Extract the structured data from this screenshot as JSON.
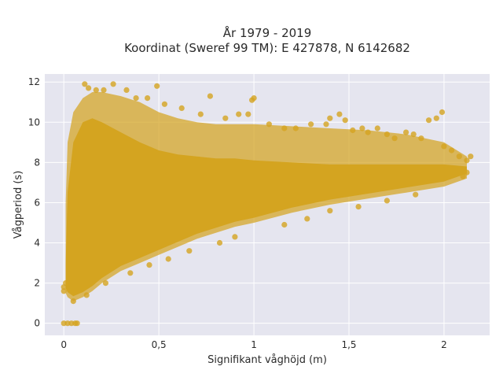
{
  "chart_data": {
    "type": "scatter",
    "title": "År 1979 - 2019",
    "subtitle": "Koordinat (Sweref 99 TM): E 427878, N 6142682",
    "xlabel": "Signifikant våghöjd (m)",
    "ylabel": "Vågperiod (s)",
    "xlim": [
      -0.1,
      2.24
    ],
    "ylim": [
      -0.6,
      12.4
    ],
    "x_ticks": [
      0,
      0.5,
      1,
      1.5,
      2
    ],
    "x_tick_labels": [
      "0",
      "0,5",
      "1",
      "1,5",
      "2"
    ],
    "y_ticks": [
      0,
      2,
      4,
      6,
      8,
      10,
      12
    ],
    "y_tick_labels": [
      "0",
      "2",
      "4",
      "6",
      "8",
      "10",
      "12"
    ],
    "grid": true,
    "colors": {
      "marker": "#D4A420",
      "plot_background": "#E5E5EF",
      "grid": "#FFFFFF"
    },
    "envelope": {
      "description": "upper and lower bounds of the dense point cloud (data units)",
      "hs": [
        0.01,
        0.02,
        0.05,
        0.1,
        0.15,
        0.2,
        0.3,
        0.4,
        0.5,
        0.6,
        0.7,
        0.8,
        0.9,
        1.0,
        1.2,
        1.4,
        1.6,
        1.8,
        2.0,
        2.12
      ],
      "tp_upper": [
        6.0,
        9.0,
        10.5,
        11.2,
        11.5,
        11.5,
        11.3,
        11.0,
        10.5,
        10.2,
        10.0,
        9.9,
        9.9,
        9.9,
        9.8,
        9.7,
        9.6,
        9.4,
        9.0,
        8.3
      ],
      "tp_lower": [
        1.5,
        1.3,
        1.1,
        1.3,
        1.6,
        2.0,
        2.6,
        3.0,
        3.4,
        3.8,
        4.2,
        4.5,
        4.8,
        5.0,
        5.5,
        5.9,
        6.2,
        6.5,
        6.8,
        7.2
      ],
      "tp_core_upper": [
        3.0,
        6.5,
        9.0,
        10.0,
        10.2,
        10.0,
        9.5,
        9.0,
        8.6,
        8.4,
        8.3,
        8.2,
        8.2,
        8.1,
        8.0,
        7.9,
        7.9,
        7.9,
        7.9,
        7.8
      ]
    },
    "points": [
      {
        "x": 0.0,
        "y": 0.0
      },
      {
        "x": 0.02,
        "y": 0.0
      },
      {
        "x": 0.04,
        "y": 0.0
      },
      {
        "x": 0.06,
        "y": 0.0
      },
      {
        "x": 0.07,
        "y": 0.0
      },
      {
        "x": 0.0,
        "y": 1.6
      },
      {
        "x": 0.0,
        "y": 1.8
      },
      {
        "x": 0.01,
        "y": 2.0
      },
      {
        "x": 0.11,
        "y": 11.9
      },
      {
        "x": 0.13,
        "y": 11.7
      },
      {
        "x": 0.17,
        "y": 11.6
      },
      {
        "x": 0.21,
        "y": 11.6
      },
      {
        "x": 0.26,
        "y": 11.9
      },
      {
        "x": 0.33,
        "y": 11.6
      },
      {
        "x": 0.38,
        "y": 11.2
      },
      {
        "x": 0.49,
        "y": 11.8
      },
      {
        "x": 0.44,
        "y": 11.2
      },
      {
        "x": 0.53,
        "y": 10.9
      },
      {
        "x": 0.62,
        "y": 10.7
      },
      {
        "x": 0.72,
        "y": 10.4
      },
      {
        "x": 0.77,
        "y": 11.3
      },
      {
        "x": 0.85,
        "y": 10.2
      },
      {
        "x": 0.92,
        "y": 10.4
      },
      {
        "x": 0.97,
        "y": 10.4
      },
      {
        "x": 0.99,
        "y": 11.1
      },
      {
        "x": 1.0,
        "y": 11.2
      },
      {
        "x": 1.08,
        "y": 9.9
      },
      {
        "x": 1.16,
        "y": 9.7
      },
      {
        "x": 1.22,
        "y": 9.7
      },
      {
        "x": 1.3,
        "y": 9.9
      },
      {
        "x": 1.38,
        "y": 9.9
      },
      {
        "x": 1.4,
        "y": 10.2
      },
      {
        "x": 1.45,
        "y": 10.4
      },
      {
        "x": 1.48,
        "y": 10.1
      },
      {
        "x": 1.52,
        "y": 9.6
      },
      {
        "x": 1.57,
        "y": 9.7
      },
      {
        "x": 1.6,
        "y": 9.5
      },
      {
        "x": 1.65,
        "y": 9.7
      },
      {
        "x": 1.7,
        "y": 9.4
      },
      {
        "x": 1.74,
        "y": 9.2
      },
      {
        "x": 1.8,
        "y": 9.5
      },
      {
        "x": 1.84,
        "y": 9.4
      },
      {
        "x": 1.88,
        "y": 9.2
      },
      {
        "x": 1.92,
        "y": 10.1
      },
      {
        "x": 1.96,
        "y": 10.2
      },
      {
        "x": 1.99,
        "y": 10.5
      },
      {
        "x": 2.0,
        "y": 8.8
      },
      {
        "x": 2.04,
        "y": 8.6
      },
      {
        "x": 2.08,
        "y": 8.3
      },
      {
        "x": 2.12,
        "y": 8.1
      },
      {
        "x": 2.14,
        "y": 8.3
      },
      {
        "x": 2.1,
        "y": 7.3
      },
      {
        "x": 2.12,
        "y": 7.5
      },
      {
        "x": 1.16,
        "y": 4.9
      },
      {
        "x": 1.28,
        "y": 5.2
      },
      {
        "x": 1.4,
        "y": 5.6
      },
      {
        "x": 1.55,
        "y": 5.8
      },
      {
        "x": 1.7,
        "y": 6.1
      },
      {
        "x": 1.85,
        "y": 6.4
      },
      {
        "x": 0.82,
        "y": 4.0
      },
      {
        "x": 0.9,
        "y": 4.3
      },
      {
        "x": 0.66,
        "y": 3.6
      },
      {
        "x": 0.55,
        "y": 3.2
      },
      {
        "x": 0.45,
        "y": 2.9
      },
      {
        "x": 0.35,
        "y": 2.5
      },
      {
        "x": 0.22,
        "y": 2.0
      },
      {
        "x": 0.12,
        "y": 1.4
      },
      {
        "x": 0.05,
        "y": 1.1
      }
    ]
  }
}
